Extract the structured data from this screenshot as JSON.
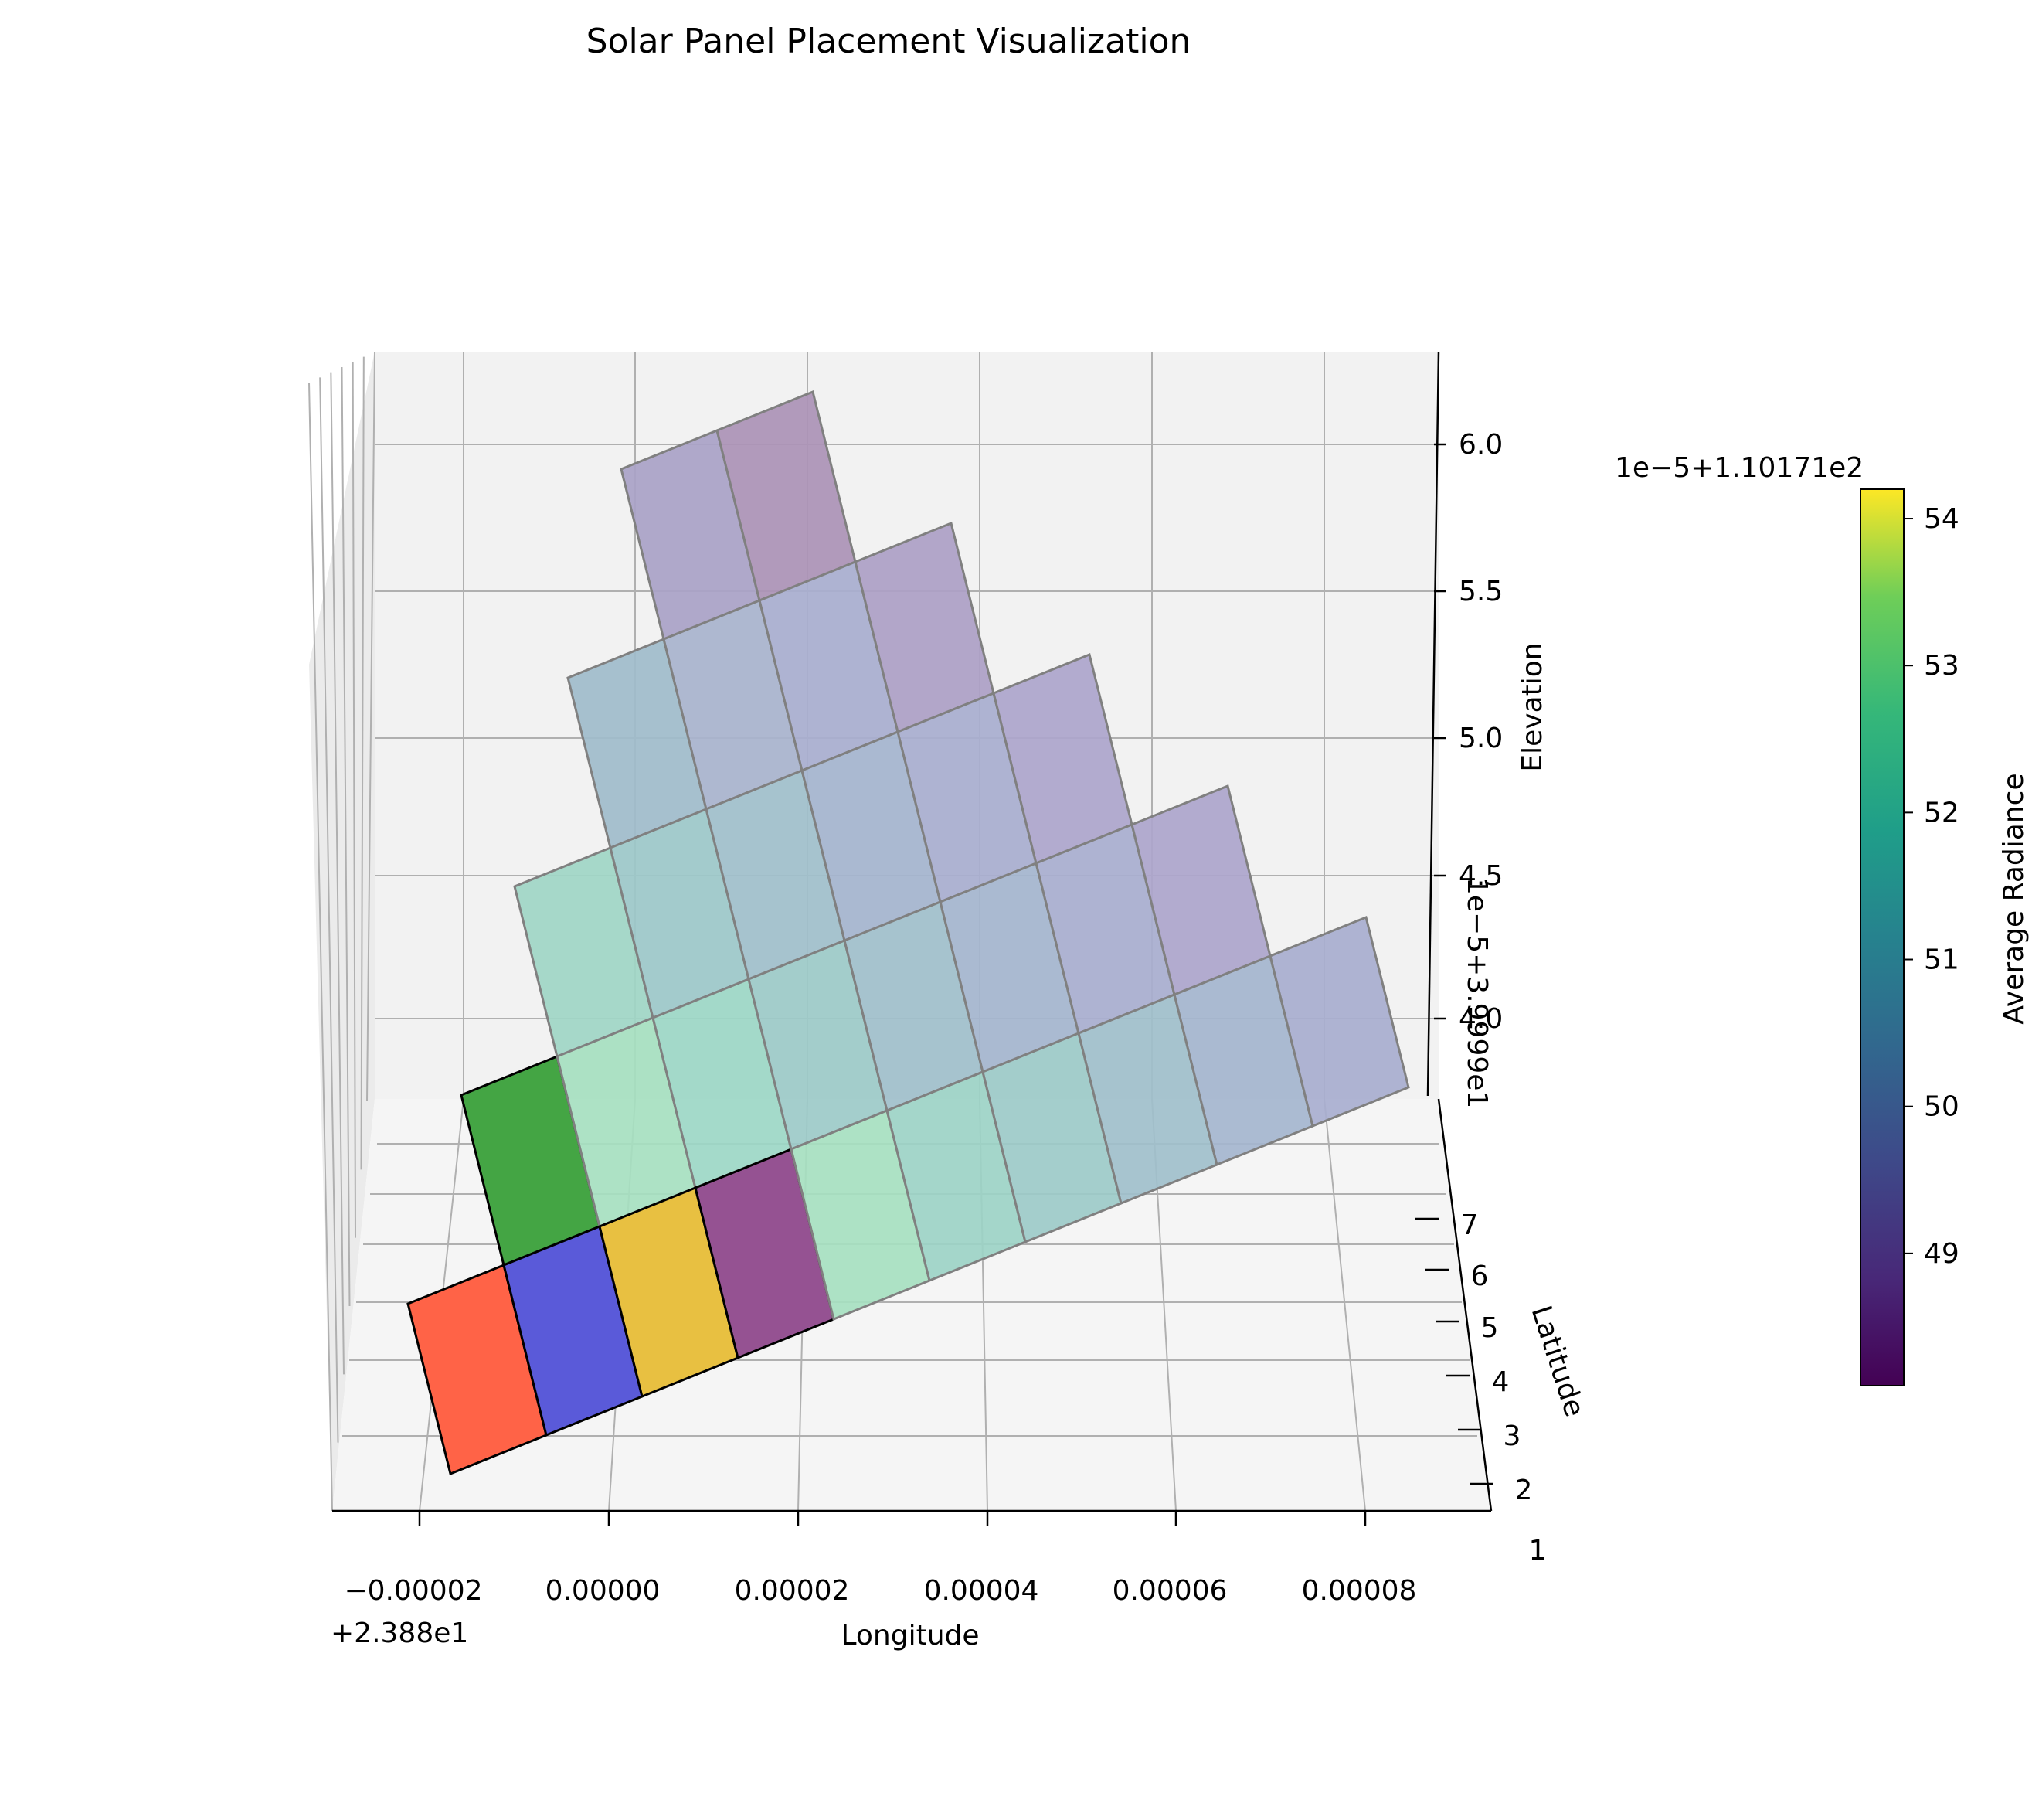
{
  "chart_data": {
    "type": "bar3d",
    "title": "Solar Panel Placement Visualization",
    "view": "3d-perspective",
    "grid": true,
    "axes": {
      "x": {
        "label": "Longitude",
        "offset_text": "+2.388e1",
        "ticks": [
          "−0.00002",
          "0.00000",
          "0.00002",
          "0.00004",
          "0.00006",
          "0.00008"
        ],
        "range": [
          -3e-05,
          9.3e-05
        ]
      },
      "y": {
        "label": "Latitude",
        "ticks": [
          "1",
          "2",
          "3",
          "4",
          "5",
          "6",
          "7"
        ],
        "range": [
          1,
          7.5
        ]
      },
      "z": {
        "label": "Elevation",
        "offset_text": "1e−5+3.9999e1",
        "ticks": [
          "4.0",
          "4.5",
          "5.0",
          "5.5",
          "6.0"
        ],
        "range": [
          3.75,
          6.3
        ]
      }
    },
    "colorbar": {
      "label": "Average Radiance",
      "offset_text": "1e−5+1.10171e2",
      "colormap": "viridis",
      "ticks": [
        "49",
        "50",
        "51",
        "52",
        "53",
        "54"
      ],
      "range": [
        48.1,
        54.2
      ]
    },
    "highlighted_panels": [
      {
        "row": 0,
        "col": 0,
        "color": "#ff6347"
      },
      {
        "row": 0,
        "col": 1,
        "color": "#5a5ad9"
      },
      {
        "row": 0,
        "col": 2,
        "color": "#e8c041"
      },
      {
        "row": 0,
        "col": 3,
        "color": "#955292"
      },
      {
        "row": 1,
        "col": 0,
        "color": "#44a544"
      }
    ],
    "grid_cells": [
      {
        "row": 0,
        "count": 10,
        "colors": [
          "#ff6347",
          "#5a5ad9",
          "#e8c041",
          "#955292",
          "#a6e0c0",
          "#9cd3c5",
          "#9ccac8",
          "#9fbfcb",
          "#a4b5ce",
          "#a8aecf"
        ]
      },
      {
        "row": 1,
        "count": 8,
        "colors": [
          "#44a544",
          "#a6e0c0",
          "#9cd7c5",
          "#9ccac8",
          "#9fbfcb",
          "#a4b5ce",
          "#a8aecf",
          "#ada5cc"
        ]
      },
      {
        "row": 2,
        "count": 6,
        "colors": [
          "#9fd6c6",
          "#9cc8c9",
          "#a0bfcb",
          "#a4b4ce",
          "#a8aecf",
          "#ada5cc"
        ]
      },
      {
        "row": 3,
        "count": 4,
        "colors": [
          "#a0bccb",
          "#a8b3cd",
          "#a8aecf",
          "#ad9fc6"
        ]
      },
      {
        "row": 4,
        "count": 2,
        "colors": [
          "#a9a2c7",
          "#ab92b6"
        ]
      }
    ]
  }
}
